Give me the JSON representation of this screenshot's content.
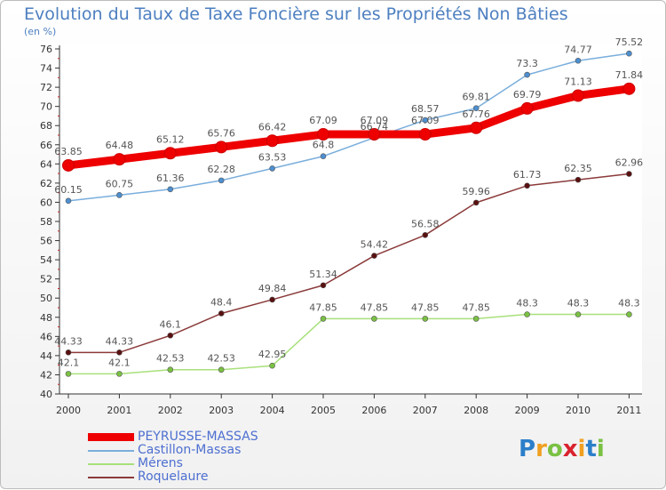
{
  "title": "Evolution du Taux de Taxe Foncière sur les Propriétés Non Bâties",
  "subtitle": "(en %)",
  "logo": {
    "text": "Proxiti",
    "letters": [
      "P",
      "r",
      "o",
      "x",
      "i",
      "t",
      "i"
    ],
    "colors": [
      "#2c7fc9",
      "#f0a020",
      "#7ac143",
      "#d9232e",
      "#f0a020",
      "#2c7fc9",
      "#7ac143"
    ]
  },
  "chart_data": {
    "type": "line",
    "x": [
      "2000",
      "2001",
      "2002",
      "2003",
      "2004",
      "2005",
      "2006",
      "2007",
      "2008",
      "2009",
      "2010",
      "2011"
    ],
    "ylim": [
      40,
      76
    ],
    "ytick_step": 2,
    "grid": false,
    "legend_placement": "bottom-left",
    "series": [
      {
        "name": "PEYRUSSE-MASSAS",
        "color": "#ee0000",
        "bold": true,
        "values": [
          63.85,
          64.48,
          65.12,
          65.76,
          66.42,
          67.09,
          67.09,
          67.09,
          67.76,
          69.79,
          71.13,
          71.84
        ],
        "labels": [
          "63.85",
          "64.48",
          "65.12",
          "65.76",
          "66.42",
          "67.09",
          "67.09",
          "67.09",
          "67.76",
          "69.79",
          "71.13",
          "71.84"
        ]
      },
      {
        "name": "Castillon-Massas",
        "color": "#7aaedc",
        "marker": "#4d8fd0",
        "values": [
          60.15,
          60.75,
          61.36,
          62.28,
          63.53,
          64.8,
          66.74,
          68.57,
          69.81,
          73.3,
          74.77,
          75.52
        ],
        "labels": [
          "60.15",
          "60.75",
          "61.36",
          "62.28",
          "63.53",
          "64.8",
          "66.74",
          "68.57",
          "69.81",
          "73.3",
          "74.77",
          "75.52"
        ]
      },
      {
        "name": "Mérens",
        "color": "#a8e07a",
        "marker": "#7ac143",
        "values": [
          42.1,
          42.1,
          42.53,
          42.53,
          42.95,
          47.85,
          47.85,
          47.85,
          47.85,
          48.3,
          48.3,
          48.3
        ],
        "labels": [
          "42.1",
          "42.1",
          "42.53",
          "42.53",
          "42.95",
          "47.85",
          "47.85",
          "47.85",
          "47.85",
          "48.3",
          "48.3",
          "48.3"
        ]
      },
      {
        "name": "Roquelaure",
        "color": "#8b3a3a",
        "marker": "#5a1010",
        "values": [
          44.33,
          44.33,
          46.1,
          48.4,
          49.84,
          51.34,
          54.42,
          56.58,
          59.96,
          61.73,
          62.35,
          62.96
        ],
        "labels": [
          "44.33",
          "44.33",
          "46.1",
          "48.4",
          "49.84",
          "51.34",
          "54.42",
          "56.58",
          "59.96",
          "61.73",
          "62.35",
          "62.96"
        ]
      }
    ]
  }
}
